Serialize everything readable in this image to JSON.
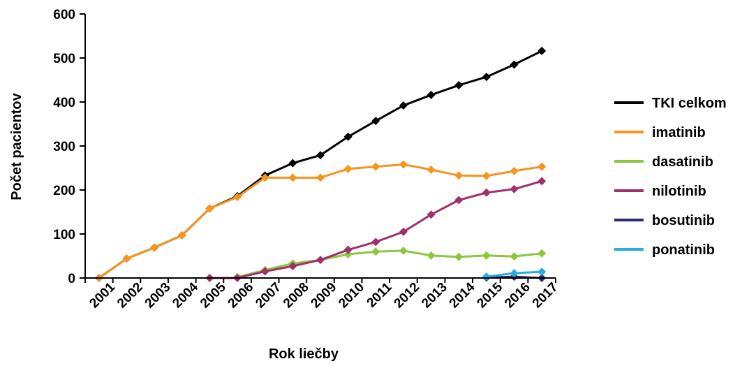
{
  "chart_data": {
    "type": "line",
    "title": "",
    "xlabel": "Rok liečby",
    "ylabel": "Počet pacientov",
    "categories": [
      "2001",
      "2002",
      "2003",
      "2004",
      "2005",
      "2006",
      "2007",
      "2008",
      "2009",
      "2010",
      "2011",
      "2012",
      "2013",
      "2014",
      "2015",
      "2016",
      "2017"
    ],
    "ylim": [
      0,
      600
    ],
    "yticks": [
      0,
      100,
      200,
      300,
      400,
      500,
      600
    ],
    "grid": false,
    "legend_position": "right",
    "series": [
      {
        "name": "TKI celkom",
        "color": "#000000",
        "points": [
          [
            0,
            0
          ],
          [
            1,
            44
          ],
          [
            2,
            69
          ],
          [
            3,
            97
          ],
          [
            4,
            158
          ],
          [
            5,
            186
          ],
          [
            6,
            233
          ],
          [
            7,
            261
          ],
          [
            8,
            279
          ],
          [
            9,
            321
          ],
          [
            10,
            357
          ],
          [
            11,
            392
          ],
          [
            12,
            416
          ],
          [
            13,
            438
          ],
          [
            14,
            457
          ],
          [
            15,
            485
          ],
          [
            16,
            516
          ]
        ]
      },
      {
        "name": "imatinib",
        "color": "#F7941D",
        "points": [
          [
            0,
            0
          ],
          [
            1,
            44
          ],
          [
            2,
            69
          ],
          [
            3,
            97
          ],
          [
            4,
            158
          ],
          [
            5,
            184
          ],
          [
            6,
            228
          ],
          [
            7,
            228
          ],
          [
            8,
            228
          ],
          [
            9,
            248
          ],
          [
            10,
            253
          ],
          [
            11,
            258
          ],
          [
            12,
            246
          ],
          [
            13,
            233
          ],
          [
            14,
            232
          ],
          [
            15,
            243
          ],
          [
            16,
            253
          ]
        ]
      },
      {
        "name": "dasatinib",
        "color": "#8DC63F",
        "points": [
          [
            5,
            2
          ],
          [
            6,
            18
          ],
          [
            7,
            33
          ],
          [
            8,
            41
          ],
          [
            9,
            54
          ],
          [
            10,
            60
          ],
          [
            11,
            62
          ],
          [
            12,
            51
          ],
          [
            13,
            48
          ],
          [
            14,
            51
          ],
          [
            15,
            49
          ],
          [
            16,
            56
          ]
        ]
      },
      {
        "name": "nilotinib",
        "color": "#A0306A",
        "points": [
          [
            4,
            0
          ],
          [
            5,
            0
          ],
          [
            6,
            15
          ],
          [
            7,
            27
          ],
          [
            8,
            41
          ],
          [
            9,
            64
          ],
          [
            10,
            82
          ],
          [
            11,
            105
          ],
          [
            12,
            144
          ],
          [
            13,
            177
          ],
          [
            14,
            194
          ],
          [
            15,
            202
          ],
          [
            16,
            220
          ]
        ]
      },
      {
        "name": "bosutinib",
        "color": "#2E2D6B",
        "points": [
          [
            14,
            1
          ],
          [
            15,
            3
          ],
          [
            16,
            0
          ]
        ]
      },
      {
        "name": "ponatinib",
        "color": "#29ABE2",
        "points": [
          [
            14,
            3
          ],
          [
            15,
            11
          ],
          [
            16,
            14
          ]
        ]
      }
    ]
  }
}
